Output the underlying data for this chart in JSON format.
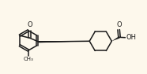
{
  "background_color": "#fdf8ec",
  "line_color": "#1a1a1a",
  "line_width": 1.1,
  "figsize": [
    1.86,
    0.94
  ],
  "dpi": 100,
  "xlim": [
    0,
    10.5
  ],
  "ylim": [
    1.0,
    5.5
  ]
}
